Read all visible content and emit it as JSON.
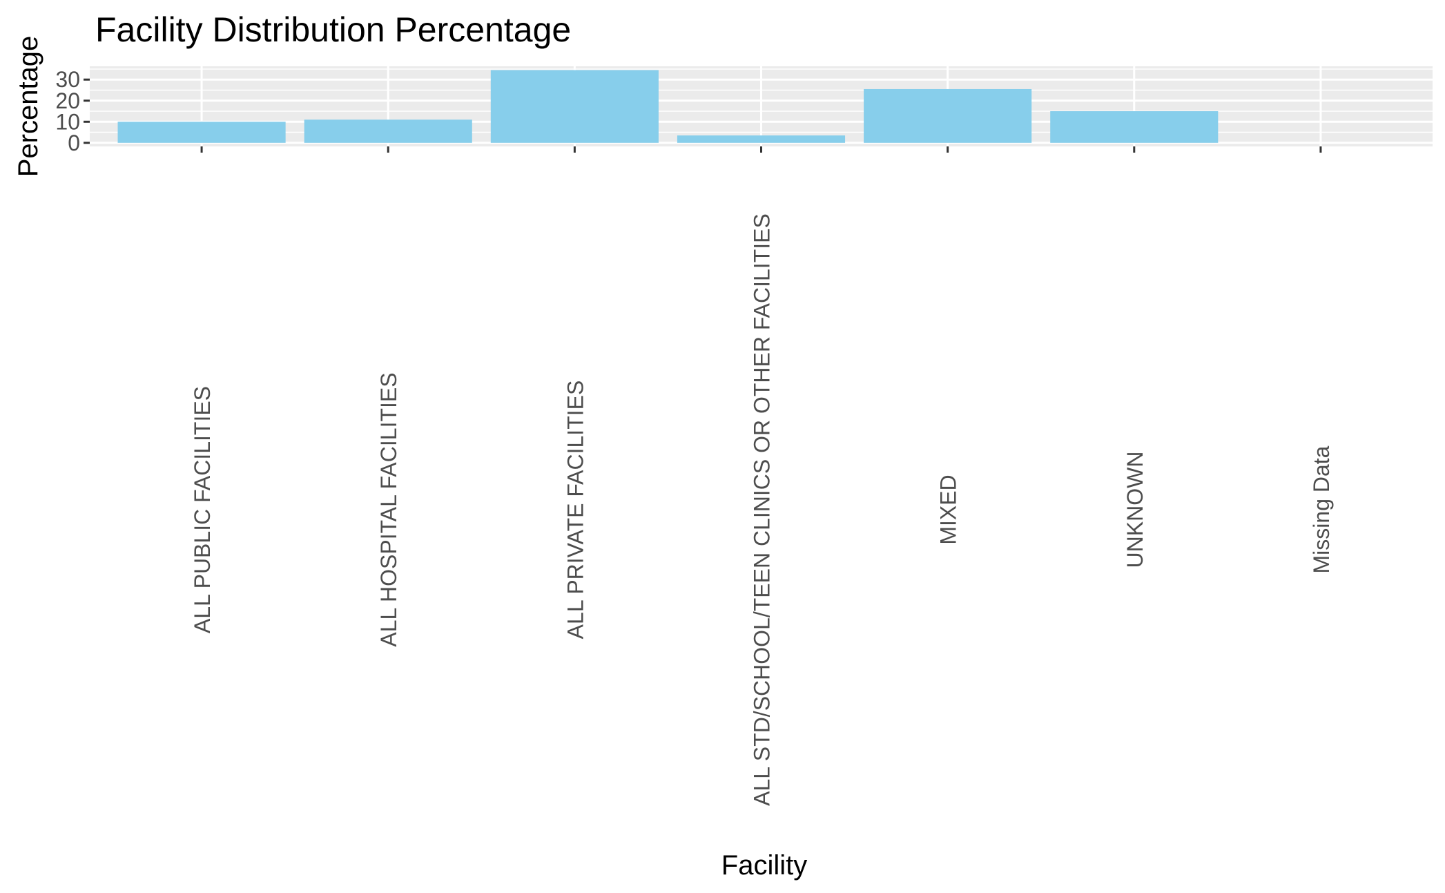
{
  "chart_data": {
    "type": "bar",
    "title": "Facility Distribution Percentage",
    "xlabel": "Facility",
    "ylabel": "Percentage",
    "categories": [
      "ALL PUBLIC FACILITIES",
      "ALL HOSPITAL FACILITIES",
      "ALL PRIVATE FACILITIES",
      "ALL STD/SCHOOL/TEEN CLINICS OR OTHER FACILITIES",
      "MIXED",
      "UNKNOWN",
      "Missing Data"
    ],
    "values": [
      10,
      11,
      34.5,
      3.5,
      25.5,
      15,
      0
    ],
    "yticks": [
      0,
      10,
      20,
      30
    ],
    "ytick_labels": [
      "0",
      "10",
      "20",
      "30"
    ],
    "ylim": [
      -1.7,
      36.3
    ],
    "grid": true,
    "colors": {
      "bar": "#87CEEB",
      "panel_background": "#EBEBEB",
      "grid": "#FFFFFF",
      "tick": "#333333"
    }
  }
}
